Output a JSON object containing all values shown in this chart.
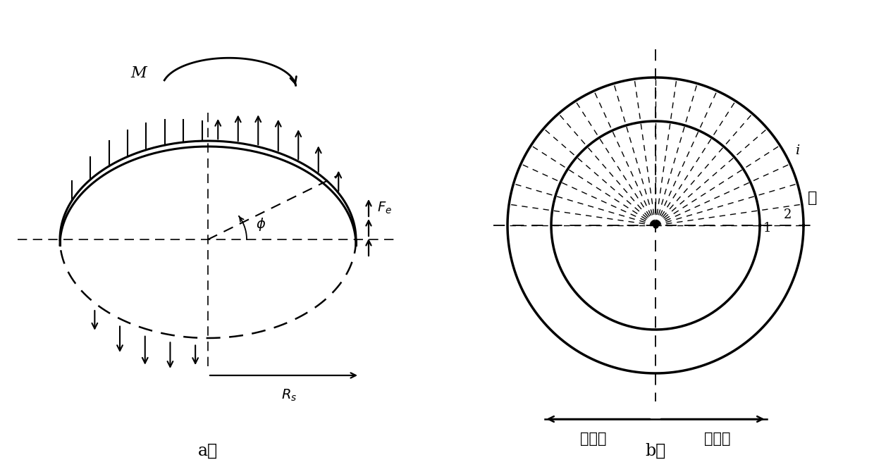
{
  "fig_width": 12.4,
  "fig_height": 6.73,
  "bg_color": "#ffffff",
  "line_color": "#000000",
  "label_a": "a）",
  "label_b": "b）",
  "text_M": "M",
  "text_Fe": "$F_e$",
  "text_phi": "$\\phi$",
  "text_Rs": "$R_s$",
  "text_i": "i",
  "text_1": "1",
  "text_2": "2",
  "text_left": "受压端",
  "text_right": "受拉端"
}
